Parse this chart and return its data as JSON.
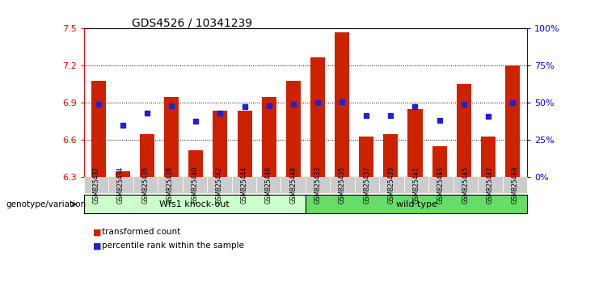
{
  "title": "GDS4526 / 10341239",
  "samples": [
    "GSM825432",
    "GSM825434",
    "GSM825436",
    "GSM825438",
    "GSM825440",
    "GSM825442",
    "GSM825444",
    "GSM825446",
    "GSM825448",
    "GSM825433",
    "GSM825435",
    "GSM825437",
    "GSM825439",
    "GSM825441",
    "GSM825443",
    "GSM825445",
    "GSM825447",
    "GSM825449"
  ],
  "bar_values": [
    7.08,
    6.35,
    6.65,
    6.95,
    6.52,
    6.84,
    6.84,
    6.95,
    7.08,
    7.27,
    7.47,
    6.63,
    6.65,
    6.85,
    6.55,
    7.05,
    6.63,
    7.2
  ],
  "dot_values": [
    6.89,
    6.72,
    6.82,
    6.88,
    6.75,
    6.82,
    6.87,
    6.88,
    6.89,
    6.9,
    6.91,
    6.8,
    6.8,
    6.87,
    6.76,
    6.89,
    6.79,
    6.9
  ],
  "group1_label": "Wfs1 knock-out",
  "group2_label": "wild type",
  "group1_count": 9,
  "group2_count": 9,
  "ylim": [
    6.3,
    7.5
  ],
  "yticks_left": [
    6.3,
    6.6,
    6.9,
    7.2,
    7.5
  ],
  "yticks_right_vals": [
    0,
    25,
    50,
    75,
    100
  ],
  "yticks_right_pos": [
    6.3,
    6.6,
    6.9,
    7.2,
    7.5
  ],
  "bar_color": "#cc2200",
  "dot_color": "#2222cc",
  "group1_bg": "#ccffcc",
  "group2_bg": "#66dd66",
  "genotype_label": "genotype/variation",
  "legend_bar": "transformed count",
  "legend_dot": "percentile rank within the sample"
}
